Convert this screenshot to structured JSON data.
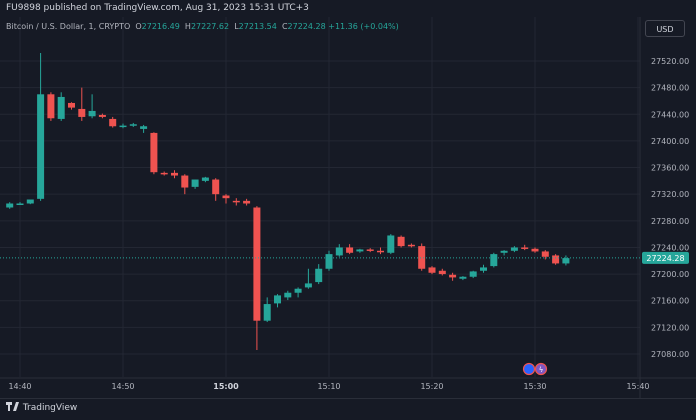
{
  "header": {
    "publisher": "FU9898 published on TradingView.com, Aug 31, 2023 15:31 UTC+3",
    "symbol": "Bitcoin / U.S. Dollar, 1, CRYPTO",
    "open_label": "O",
    "open": "27216.49",
    "high_label": "H",
    "high": "27227.62",
    "low_label": "L",
    "low": "27213.54",
    "close_label": "C",
    "close": "27224.28",
    "change": "+11.36 (+0.04%)",
    "currency": "USD"
  },
  "footer": {
    "brand": "TradingView"
  },
  "colors": {
    "up": "#26a69a",
    "down": "#ef5350",
    "background": "#161a25",
    "grid": "#232733",
    "last_price_bg": "#26a69a"
  },
  "chart_data": {
    "type": "candlestick",
    "interval": "1 minute",
    "last_price": 27224.28,
    "last_price_label": "27224.28",
    "ylim": [
      27060,
      27560
    ],
    "y_ticks": [
      27080,
      27120,
      27160,
      27200,
      27240,
      27280,
      27320,
      27360,
      27400,
      27440,
      27480,
      27520
    ],
    "y_tick_labels": [
      "27080.00",
      "27120.00",
      "27160.00",
      "27200.00",
      "27240.00",
      "27280.00",
      "27320.00",
      "27360.00",
      "27400.00",
      "27440.00",
      "27480.00",
      "27520.00"
    ],
    "x_tick_labels": [
      "14:40",
      "14:50",
      "15:00",
      "15:10",
      "15:20",
      "15:30",
      "15:40"
    ],
    "x_tick_minutes": [
      0,
      10,
      20,
      30,
      40,
      50,
      60
    ],
    "x_start": "14:40",
    "grid": true,
    "candles": [
      {
        "t": -1,
        "o": 27300,
        "h": 27308,
        "l": 27298,
        "c": 27306
      },
      {
        "t": 0,
        "o": 27306,
        "h": 27308,
        "l": 27304,
        "c": 27306
      },
      {
        "t": 1,
        "o": 27306,
        "h": 27310,
        "l": 27305,
        "c": 27312
      },
      {
        "t": 2,
        "o": 27313,
        "h": 27532,
        "l": 27310,
        "c": 27470
      },
      {
        "t": 3,
        "o": 27470,
        "h": 27473,
        "l": 27430,
        "c": 27434
      },
      {
        "t": 4,
        "o": 27433,
        "h": 27473,
        "l": 27430,
        "c": 27466
      },
      {
        "t": 5,
        "o": 27457,
        "h": 27458,
        "l": 27447,
        "c": 27450
      },
      {
        "t": 6,
        "o": 27448,
        "h": 27480,
        "l": 27430,
        "c": 27436
      },
      {
        "t": 7,
        "o": 27437,
        "h": 27470,
        "l": 27434,
        "c": 27445
      },
      {
        "t": 8,
        "o": 27439,
        "h": 27441,
        "l": 27434,
        "c": 27436
      },
      {
        "t": 9,
        "o": 27433,
        "h": 27436,
        "l": 27420,
        "c": 27422
      },
      {
        "t": 10,
        "o": 27423,
        "h": 27426,
        "l": 27419,
        "c": 27423
      },
      {
        "t": 11,
        "o": 27423,
        "h": 27427,
        "l": 27421,
        "c": 27425
      },
      {
        "t": 12,
        "o": 27418,
        "h": 27424,
        "l": 27412,
        "c": 27422
      },
      {
        "t": 13,
        "o": 27412,
        "h": 27413,
        "l": 27350,
        "c": 27353
      },
      {
        "t": 14,
        "o": 27352,
        "h": 27354,
        "l": 27348,
        "c": 27350
      },
      {
        "t": 15,
        "o": 27352,
        "h": 27356,
        "l": 27344,
        "c": 27348
      },
      {
        "t": 16,
        "o": 27348,
        "h": 27350,
        "l": 27320,
        "c": 27330
      },
      {
        "t": 17,
        "o": 27331,
        "h": 27342,
        "l": 27328,
        "c": 27342
      },
      {
        "t": 18,
        "o": 27340,
        "h": 27346,
        "l": 27338,
        "c": 27345
      },
      {
        "t": 19,
        "o": 27342,
        "h": 27344,
        "l": 27310,
        "c": 27320
      },
      {
        "t": 20,
        "o": 27318,
        "h": 27320,
        "l": 27306,
        "c": 27314
      },
      {
        "t": 21,
        "o": 27310,
        "h": 27314,
        "l": 27303,
        "c": 27308
      },
      {
        "t": 22,
        "o": 27310,
        "h": 27313,
        "l": 27303,
        "c": 27306
      },
      {
        "t": 23,
        "o": 27300,
        "h": 27302,
        "l": 27086,
        "c": 27130
      },
      {
        "t": 24,
        "o": 27130,
        "h": 27165,
        "l": 27128,
        "c": 27155
      },
      {
        "t": 25,
        "o": 27156,
        "h": 27170,
        "l": 27150,
        "c": 27168
      },
      {
        "t": 26,
        "o": 27165,
        "h": 27175,
        "l": 27161,
        "c": 27172
      },
      {
        "t": 27,
        "o": 27172,
        "h": 27180,
        "l": 27165,
        "c": 27178
      },
      {
        "t": 28,
        "o": 27180,
        "h": 27208,
        "l": 27178,
        "c": 27186
      },
      {
        "t": 29,
        "o": 27188,
        "h": 27215,
        "l": 27185,
        "c": 27208
      },
      {
        "t": 30,
        "o": 27208,
        "h": 27235,
        "l": 27205,
        "c": 27230
      },
      {
        "t": 31,
        "o": 27228,
        "h": 27245,
        "l": 27226,
        "c": 27240
      },
      {
        "t": 32,
        "o": 27240,
        "h": 27245,
        "l": 27230,
        "c": 27232
      },
      {
        "t": 33,
        "o": 27234,
        "h": 27238,
        "l": 27232,
        "c": 27237
      },
      {
        "t": 34,
        "o": 27237,
        "h": 27239,
        "l": 27233,
        "c": 27235
      },
      {
        "t": 35,
        "o": 27235,
        "h": 27240,
        "l": 27230,
        "c": 27233
      },
      {
        "t": 36,
        "o": 27232,
        "h": 27260,
        "l": 27230,
        "c": 27258
      },
      {
        "t": 37,
        "o": 27256,
        "h": 27258,
        "l": 27240,
        "c": 27242
      },
      {
        "t": 38,
        "o": 27244,
        "h": 27246,
        "l": 27240,
        "c": 27243
      },
      {
        "t": 39,
        "o": 27242,
        "h": 27246,
        "l": 27205,
        "c": 27208
      },
      {
        "t": 40,
        "o": 27210,
        "h": 27212,
        "l": 27200,
        "c": 27202
      },
      {
        "t": 41,
        "o": 27205,
        "h": 27208,
        "l": 27198,
        "c": 27200
      },
      {
        "t": 42,
        "o": 27199,
        "h": 27202,
        "l": 27190,
        "c": 27195
      },
      {
        "t": 43,
        "o": 27193,
        "h": 27197,
        "l": 27191,
        "c": 27196
      },
      {
        "t": 44,
        "o": 27196,
        "h": 27205,
        "l": 27194,
        "c": 27204
      },
      {
        "t": 45,
        "o": 27205,
        "h": 27214,
        "l": 27202,
        "c": 27210
      },
      {
        "t": 46,
        "o": 27212,
        "h": 27232,
        "l": 27210,
        "c": 27230
      },
      {
        "t": 47,
        "o": 27232,
        "h": 27236,
        "l": 27228,
        "c": 27235
      },
      {
        "t": 48,
        "o": 27235,
        "h": 27242,
        "l": 27233,
        "c": 27240
      },
      {
        "t": 49,
        "o": 27240,
        "h": 27244,
        "l": 27236,
        "c": 27238
      },
      {
        "t": 50,
        "o": 27238,
        "h": 27240,
        "l": 27232,
        "c": 27234
      },
      {
        "t": 51,
        "o": 27234,
        "h": 27236,
        "l": 27222,
        "c": 27226
      },
      {
        "t": 52,
        "o": 27228,
        "h": 27230,
        "l": 27214,
        "c": 27216
      },
      {
        "t": 53,
        "o": 27216,
        "h": 27228,
        "l": 27213,
        "c": 27224
      }
    ]
  }
}
